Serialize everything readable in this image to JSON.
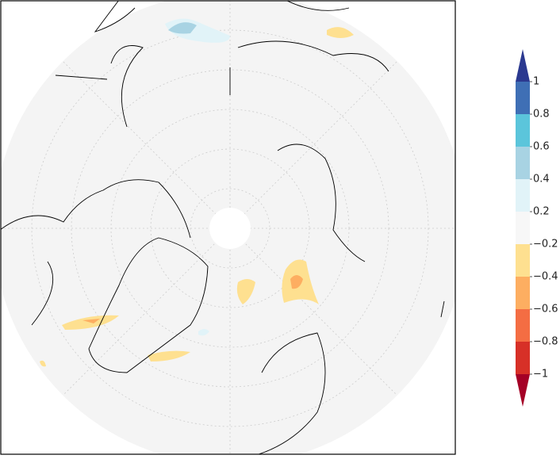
{
  "colorbar": {
    "ticks": [
      {
        "value": 1,
        "label": "1"
      },
      {
        "value": 0.8,
        "label": "0.8"
      },
      {
        "value": 0.6,
        "label": "0.6"
      },
      {
        "value": 0.4,
        "label": "0.4"
      },
      {
        "value": 0.2,
        "label": "0.2"
      },
      {
        "value": -0.2,
        "label": "−0.2"
      },
      {
        "value": -0.4,
        "label": "−0.4"
      },
      {
        "value": -0.6,
        "label": "−0.6"
      },
      {
        "value": -0.8,
        "label": "−0.8"
      },
      {
        "value": -1,
        "label": "−1"
      }
    ],
    "colors": [
      "#2b3990",
      "#3f6fb5",
      "#5bc5db",
      "#a8d3e3",
      "#e1f3f8",
      "#f7f7f7",
      "#fee090",
      "#fdae61",
      "#f46d43",
      "#d73027",
      "#a50026"
    ]
  }
}
